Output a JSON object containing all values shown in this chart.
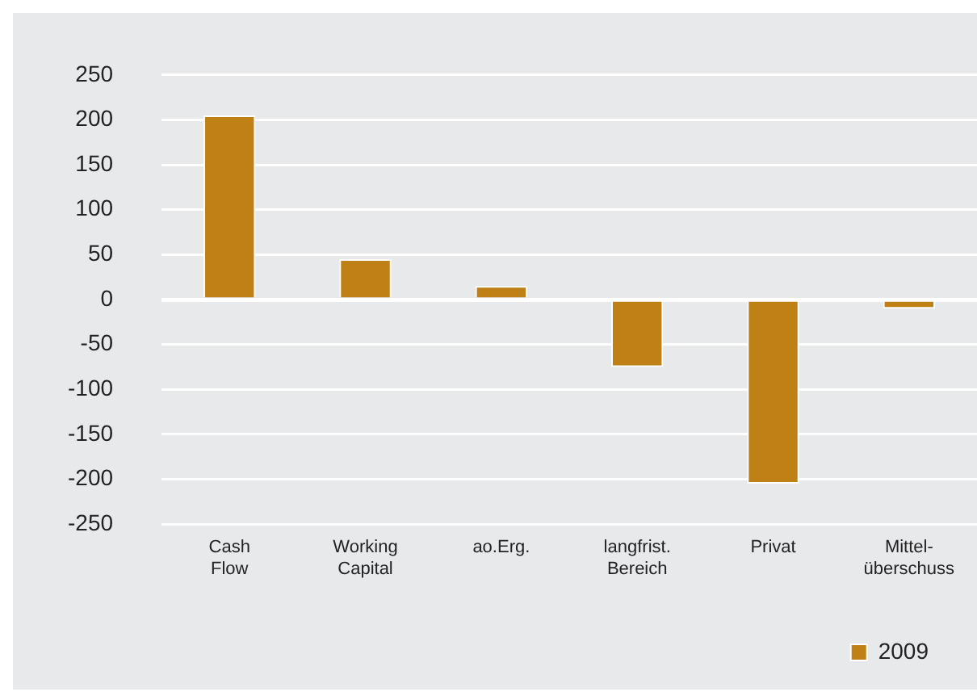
{
  "chart_data": {
    "type": "bar",
    "categories": [
      "Cash Flow",
      "Working Capital",
      "ao.Erg.",
      "langfrist. Bereich",
      "Privat",
      "Mittel-überschuss"
    ],
    "series": [
      {
        "name": "2009",
        "color": "#bf8116",
        "values": [
          205,
          45,
          15,
          -75,
          -205,
          -10
        ]
      }
    ],
    "ylim": [
      -250,
      250
    ],
    "yticks": [
      -250,
      -200,
      -150,
      -100,
      -50,
      0,
      50,
      100,
      150,
      200,
      250
    ],
    "grid": "y",
    "legend": "bottom right"
  }
}
